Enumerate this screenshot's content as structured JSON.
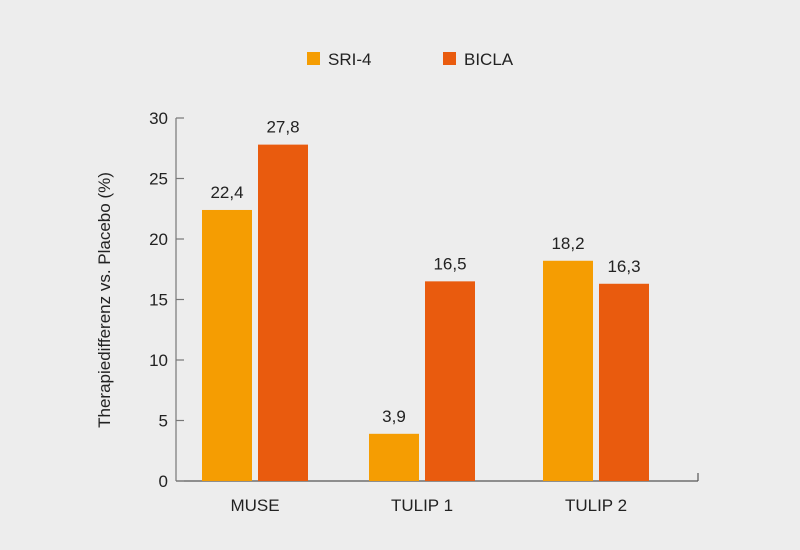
{
  "chart_data": {
    "type": "bar",
    "categories": [
      "MUSE",
      "TULIP 1",
      "TULIP 2"
    ],
    "series": [
      {
        "name": "SRI-4",
        "values": [
          22.4,
          3.9,
          18.2
        ],
        "labels": [
          "22,4",
          "3,9",
          "18,2"
        ],
        "color": "#f59d02"
      },
      {
        "name": "BICLA",
        "values": [
          27.8,
          16.5,
          16.3
        ],
        "labels": [
          "27,8",
          "16,5",
          "16,3"
        ],
        "color": "#e95b0e"
      }
    ],
    "title": "",
    "xlabel": "",
    "ylabel": "Therapiedifferenz vs. Placebo (%)",
    "ylim": [
      0,
      30
    ],
    "yticks": [
      0,
      5,
      10,
      15,
      20,
      25,
      30
    ],
    "grid": false,
    "legend": "top-center"
  }
}
